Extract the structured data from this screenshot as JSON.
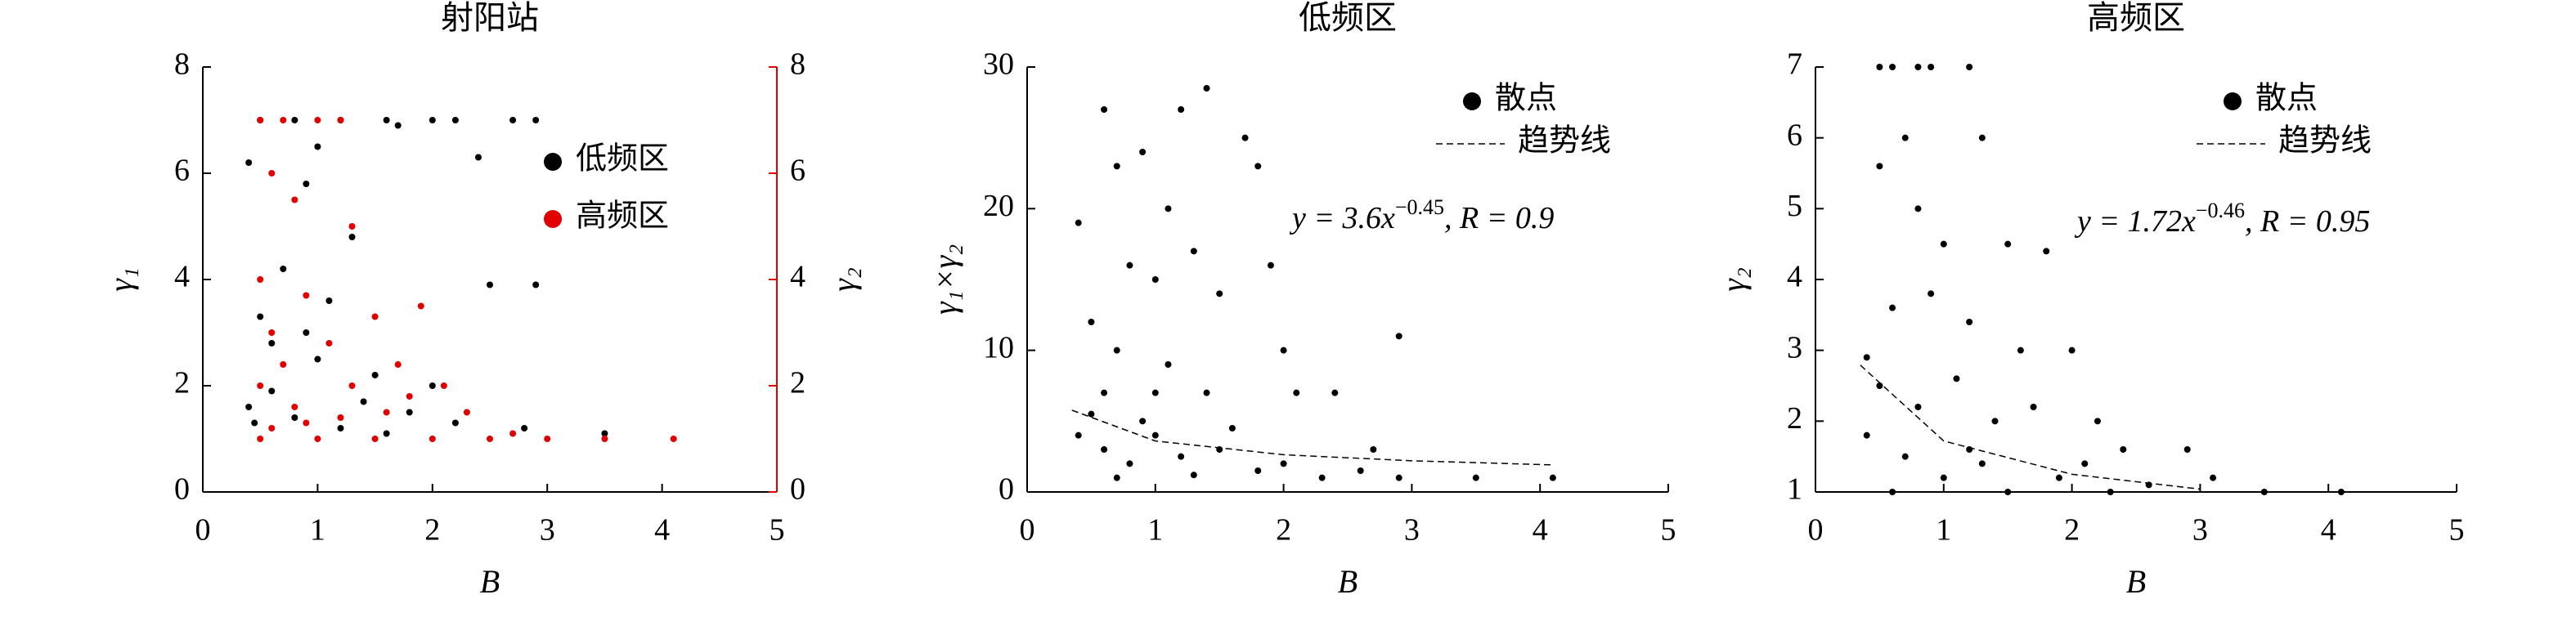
{
  "chart_data": [
    {
      "type": "scatter",
      "title": "射阳站",
      "xlabel": "B",
      "ylabel": "γ₁",
      "y2label": "γ₂",
      "xlim": [
        0,
        5
      ],
      "xticks": [
        0,
        1,
        2,
        3,
        4,
        5
      ],
      "ylim": [
        0,
        8
      ],
      "yticks": [
        0,
        2,
        4,
        6,
        8
      ],
      "y2lim": [
        0,
        8
      ],
      "y2ticks": [
        0,
        2,
        4,
        6,
        8
      ],
      "legend": "upper right",
      "series": [
        {
          "name": "低频区",
          "color": "#000000",
          "x": [
            0.5,
            0.8,
            1.2,
            1.6,
            2.0,
            2.2,
            2.7,
            2.9,
            0.4,
            0.9,
            1.3,
            0.7,
            1.1,
            0.5,
            2.5,
            2.9,
            0.6,
            1.0,
            1.5,
            0.4,
            0.8,
            1.2,
            1.8,
            2.2,
            2.8,
            3.5,
            0.6,
            0.9,
            1.4,
            2.0,
            0.45,
            1.7,
            2.4,
            1.0,
            1.6
          ],
          "values": [
            7,
            7,
            7,
            7,
            7,
            7,
            7,
            7,
            6.2,
            5.8,
            4.8,
            4.2,
            3.6,
            3.3,
            3.9,
            3.9,
            2.8,
            2.5,
            2.2,
            1.6,
            1.4,
            1.2,
            1.5,
            1.3,
            1.2,
            1.1,
            1.9,
            3.0,
            1.7,
            2.0,
            1.3,
            6.9,
            6.3,
            6.5,
            1.1
          ]
        },
        {
          "name": "高频区",
          "color": "#e00000",
          "axis": "y2",
          "x": [
            0.5,
            0.7,
            1.0,
            1.2,
            0.6,
            0.8,
            1.3,
            0.5,
            0.9,
            1.5,
            1.9,
            0.6,
            1.1,
            0.7,
            1.7,
            0.5,
            1.3,
            2.1,
            0.8,
            1.6,
            2.3,
            0.5,
            1.0,
            1.5,
            2.0,
            2.5,
            3.0,
            3.5,
            4.1,
            0.9,
            1.2,
            2.7,
            0.6,
            1.8
          ],
          "values": [
            7,
            7,
            7,
            7,
            6.0,
            5.5,
            5.0,
            4.0,
            3.7,
            3.3,
            3.5,
            3.0,
            2.8,
            2.4,
            2.4,
            2.0,
            2.0,
            2.0,
            1.6,
            1.5,
            1.5,
            1.0,
            1.0,
            1.0,
            1.0,
            1.0,
            1.0,
            1.0,
            1.0,
            1.3,
            1.4,
            1.1,
            1.2,
            1.8
          ]
        }
      ]
    },
    {
      "type": "scatter",
      "title": "低频区",
      "xlabel": "B",
      "ylabel": "γ₁×γ₂",
      "xlim": [
        0,
        5
      ],
      "xticks": [
        0,
        1,
        2,
        3,
        4,
        5
      ],
      "ylim": [
        0,
        30
      ],
      "yticks": [
        0,
        10,
        20,
        30
      ],
      "legend": "upper right",
      "annotation": {
        "lead": "y = 3.6x",
        "power": "−0.45",
        "tail": ", R = 0.9"
      },
      "series": [
        {
          "name": "散点",
          "color": "#000000",
          "x": [
            0.4,
            0.6,
            0.7,
            0.9,
            1.2,
            1.4,
            1.7,
            1.8,
            0.8,
            1.0,
            1.3,
            1.5,
            1.9,
            2.0,
            0.5,
            0.7,
            1.1,
            0.6,
            1.0,
            1.4,
            2.1,
            2.4,
            2.9,
            0.4,
            0.6,
            0.8,
            1.0,
            1.2,
            1.5,
            1.8,
            2.0,
            2.3,
            2.6,
            2.9,
            3.5,
            4.1,
            0.5,
            0.9,
            1.3,
            1.6,
            0.7,
            2.7,
            1.1
          ],
          "values": [
            19,
            27,
            23,
            24,
            27,
            28.5,
            25,
            23,
            16,
            15,
            17,
            14,
            16,
            10,
            12,
            10,
            9,
            7,
            7,
            7,
            7,
            7,
            11,
            4,
            3,
            2,
            4,
            2.5,
            3,
            1.5,
            2,
            1,
            1.5,
            1,
            1,
            1,
            5.5,
            5,
            1.2,
            4.5,
            1,
            3,
            20
          ]
        },
        {
          "name": "趋势线",
          "color": "#000000",
          "type": "line",
          "dash": true,
          "x": [
            0.35,
            1,
            2,
            3,
            4.1
          ],
          "values": [
            5.77,
            3.6,
            2.63,
            2.2,
            1.91
          ]
        }
      ]
    },
    {
      "type": "scatter",
      "title": "高频区",
      "xlabel": "B",
      "ylabel": "γ₂",
      "xlim": [
        0,
        5
      ],
      "xticks": [
        0,
        1,
        2,
        3,
        4,
        5
      ],
      "ylim": [
        1,
        7
      ],
      "yticks": [
        1,
        2,
        3,
        4,
        5,
        6,
        7
      ],
      "legend": "upper right",
      "annotation": {
        "lead": "y = 1.72x",
        "power": "−0.46",
        "tail": ", R = 0.95"
      },
      "series": [
        {
          "name": "散点",
          "color": "#000000",
          "x": [
            0.5,
            0.6,
            0.8,
            0.9,
            1.2,
            0.7,
            0.5,
            1.3,
            0.8,
            1.0,
            1.5,
            1.8,
            0.4,
            0.6,
            0.9,
            1.2,
            1.6,
            2.0,
            0.5,
            0.8,
            1.1,
            1.4,
            1.7,
            2.2,
            2.4,
            0.4,
            0.7,
            1.0,
            1.3,
            1.9,
            2.1,
            2.6,
            2.9,
            3.1,
            3.5,
            4.1,
            0.6,
            1.5,
            2.3,
            1.2
          ],
          "values": [
            7,
            7,
            7,
            7,
            7,
            6,
            5.6,
            6,
            5,
            4.5,
            4.5,
            4.4,
            2.9,
            3.6,
            3.8,
            3.4,
            3.0,
            3.0,
            2.5,
            2.2,
            2.6,
            2.0,
            2.2,
            2.0,
            1.6,
            1.8,
            1.5,
            1.2,
            1.4,
            1.2,
            1.4,
            1.1,
            1.6,
            1.2,
            1.0,
            1.0,
            1.0,
            1.0,
            1.0,
            1.6
          ]
        },
        {
          "name": "趋势线",
          "color": "#000000",
          "type": "line",
          "dash": true,
          "x": [
            0.35,
            1,
            2,
            3
          ],
          "values": [
            2.79,
            1.72,
            1.25,
            1.04
          ]
        }
      ]
    }
  ]
}
